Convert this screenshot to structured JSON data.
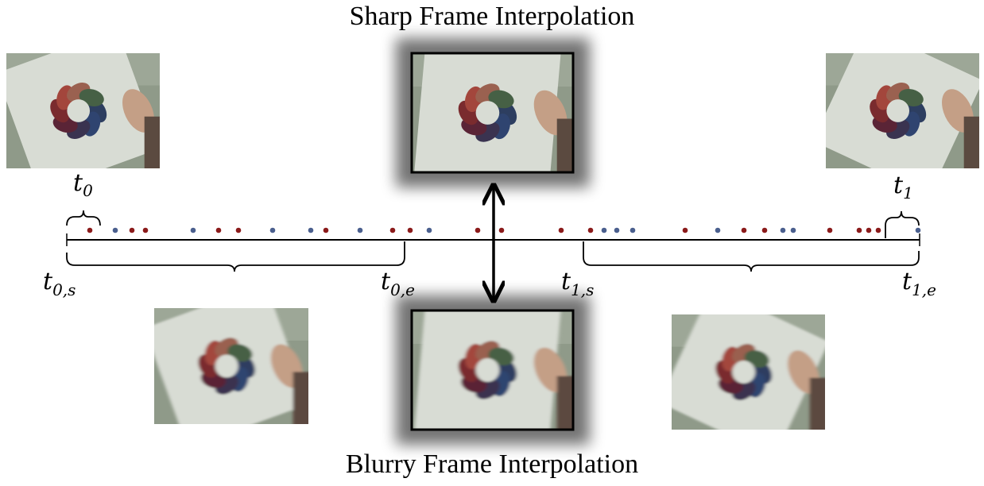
{
  "titles": {
    "sharp": "Sharp Frame Interpolation",
    "blurry": "Blurry Frame Interpolation"
  },
  "labels": {
    "t0": {
      "base": "t",
      "sub": "0"
    },
    "t1": {
      "base": "t",
      "sub": "1"
    },
    "t0s": {
      "base": "t",
      "sub": "0,s"
    },
    "t0e": {
      "base": "t",
      "sub": "0,e"
    },
    "t1s": {
      "base": "t",
      "sub": "1,s"
    },
    "t1e": {
      "base": "t",
      "sub": "1,e"
    }
  },
  "colors": {
    "event_red": "#8b1a1a",
    "event_blue": "#4a5f8e",
    "axis": "#000000",
    "frame_border": "#000000",
    "photo_bg": "#8f9a89",
    "paper": "#d8dcd4",
    "hand": "#c49f86"
  },
  "events": [
    {
      "t": 113,
      "c": "r"
    },
    {
      "t": 145,
      "c": "b"
    },
    {
      "t": 166,
      "c": "r"
    },
    {
      "t": 183,
      "c": "r"
    },
    {
      "t": 243,
      "c": "b"
    },
    {
      "t": 275,
      "c": "r"
    },
    {
      "t": 300,
      "c": "r"
    },
    {
      "t": 343,
      "c": "b"
    },
    {
      "t": 391,
      "c": "b"
    },
    {
      "t": 410,
      "c": "r"
    },
    {
      "t": 453,
      "c": "b"
    },
    {
      "t": 494,
      "c": "r"
    },
    {
      "t": 516,
      "c": "r"
    },
    {
      "t": 540,
      "c": "b"
    },
    {
      "t": 601,
      "c": "r"
    },
    {
      "t": 631,
      "c": "r"
    },
    {
      "t": 706,
      "c": "r"
    },
    {
      "t": 743,
      "c": "r"
    },
    {
      "t": 760,
      "c": "b"
    },
    {
      "t": 776,
      "c": "b"
    },
    {
      "t": 796,
      "c": "b"
    },
    {
      "t": 862,
      "c": "r"
    },
    {
      "t": 903,
      "c": "b"
    },
    {
      "t": 936,
      "c": "r"
    },
    {
      "t": 962,
      "c": "r"
    },
    {
      "t": 985,
      "c": "b"
    },
    {
      "t": 998,
      "c": "b"
    },
    {
      "t": 1044,
      "c": "r"
    },
    {
      "t": 1081,
      "c": "r"
    },
    {
      "t": 1093,
      "c": "r"
    },
    {
      "t": 1105,
      "c": "r"
    },
    {
      "t": 1155,
      "c": "b"
    }
  ],
  "petals": [
    "#2d3e60",
    "#2f4470",
    "#3a3350",
    "#5a2436",
    "#7a2b2e",
    "#a3463c",
    "#9a6150",
    "#466045"
  ]
}
